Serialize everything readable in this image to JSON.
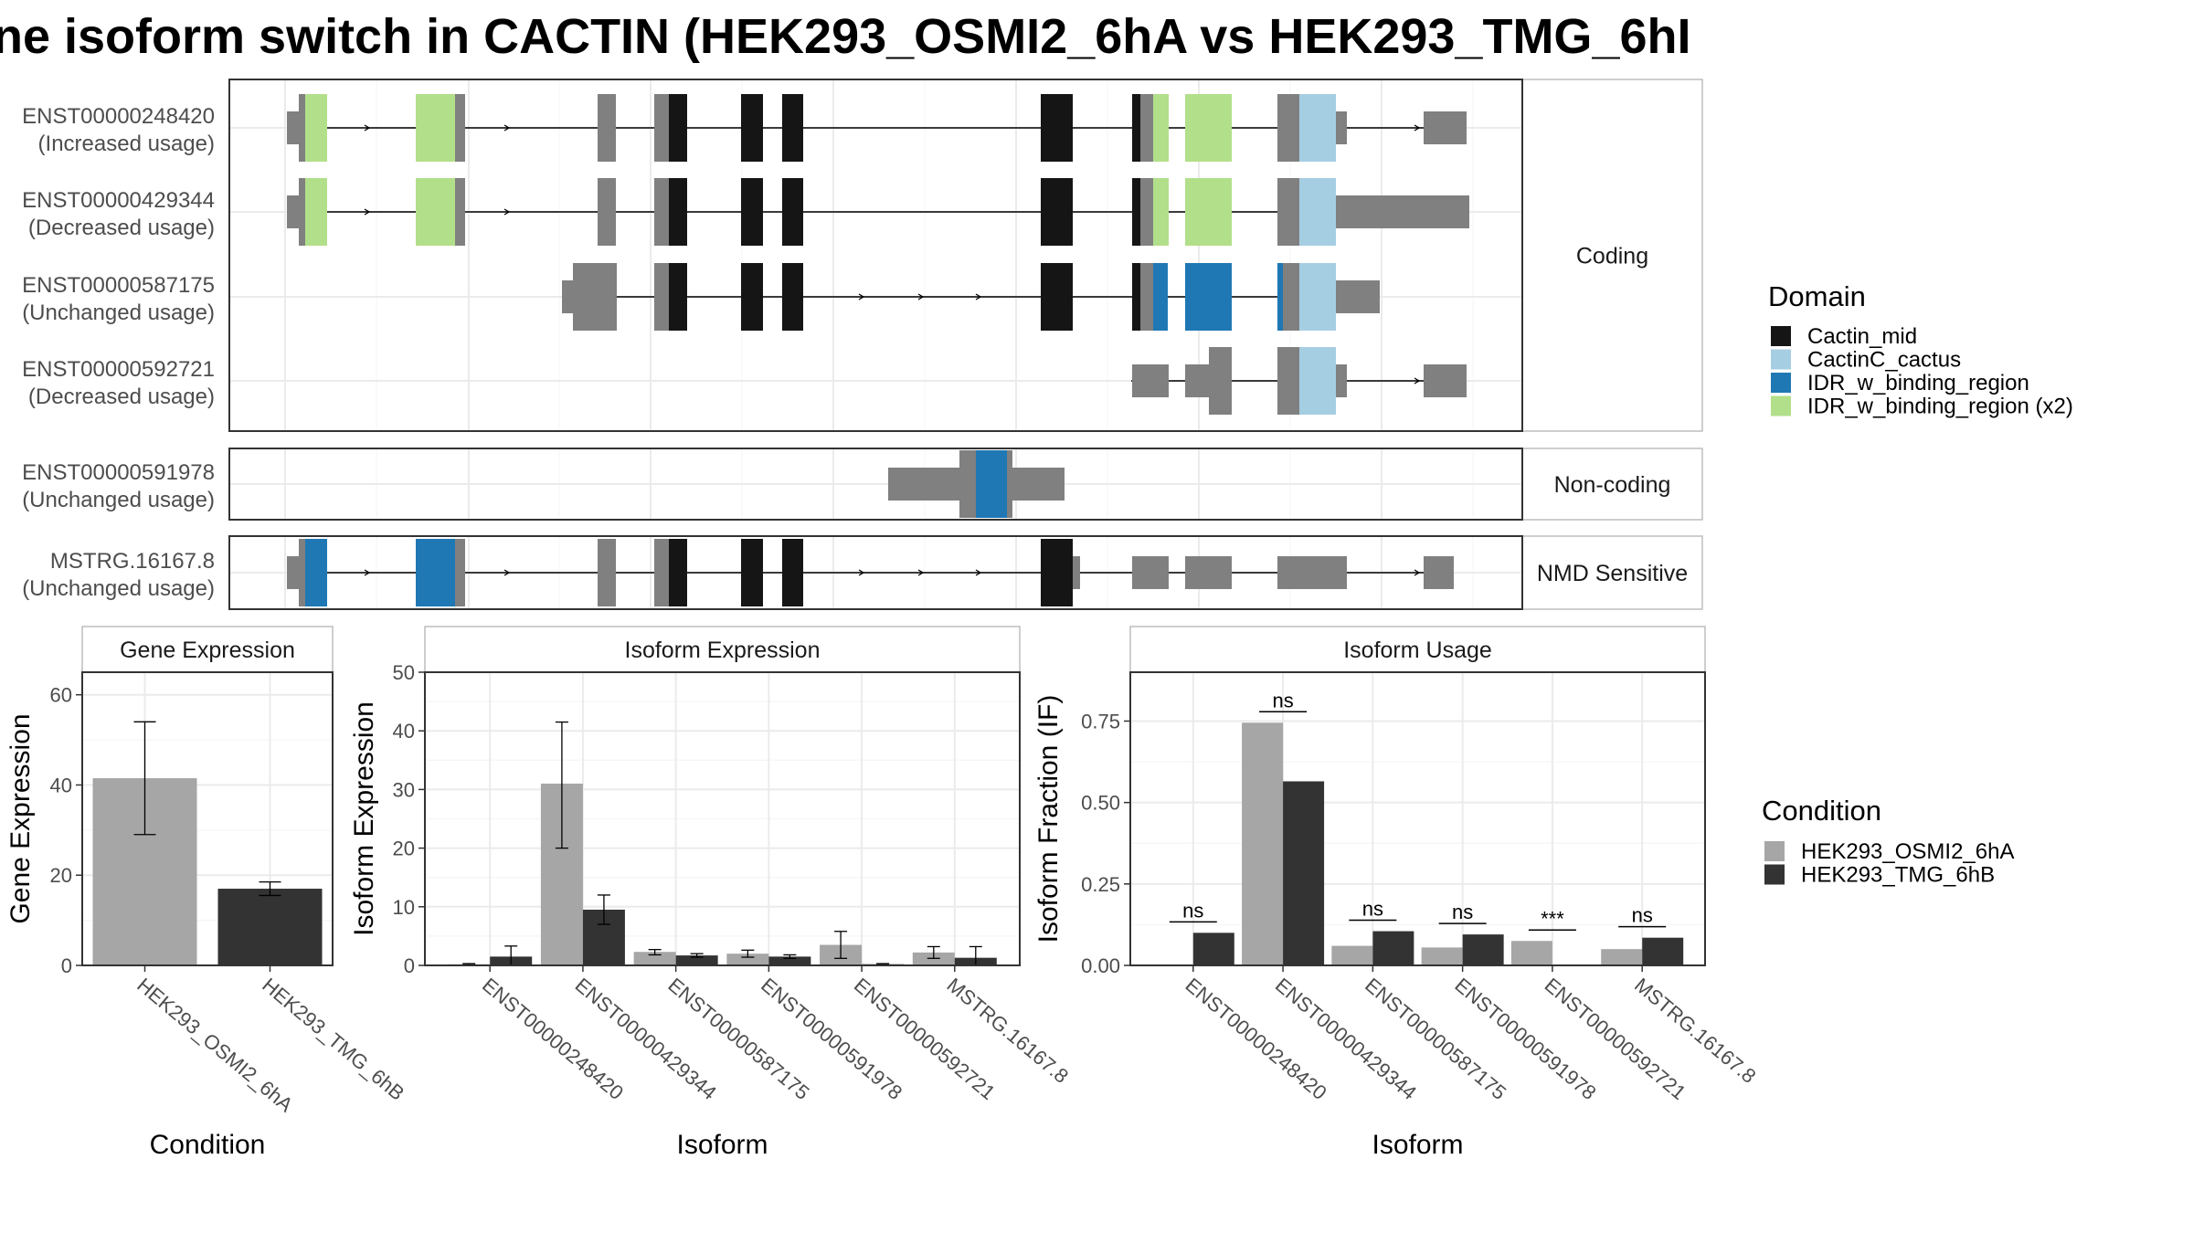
{
  "title": "ne isoform switch in CACTIN (HEK293_OSMI2_6hA vs HEK293_TMG_6hI",
  "colors": {
    "Cactin_mid": "#151515",
    "CactinC_cactus": "#a6cee3",
    "IDR_w_binding_region": "#1f78b4",
    "IDR_w_binding_region (x2)": "#b2df8a",
    "non_domain": "#808080",
    "HEK293_OSMI2_6hA": "#a6a6a6",
    "HEK293_TMG_6hB": "#333333"
  },
  "isoform_panel": {
    "facets": [
      "Coding",
      "Non-coding",
      "NMD Sensitive"
    ],
    "isoforms": [
      {
        "id": "ENST00000248420",
        "usage": "(Increased usage)",
        "facet": "Coding"
      },
      {
        "id": "ENST00000429344",
        "usage": "(Decreased usage)",
        "facet": "Coding"
      },
      {
        "id": "ENST00000587175",
        "usage": "(Unchanged usage)",
        "facet": "Coding"
      },
      {
        "id": "ENST00000592721",
        "usage": "(Decreased usage)",
        "facet": "Coding"
      },
      {
        "id": "ENST00000591978",
        "usage": "(Unchanged usage)",
        "facet": "Non-coding"
      },
      {
        "id": "MSTRG.16167.8",
        "usage": "(Unchanged usage)",
        "facet": "NMD Sensitive"
      }
    ]
  },
  "domain_legend": {
    "title": "Domain",
    "items": [
      "Cactin_mid",
      "CactinC_cactus",
      "IDR_w_binding_region",
      "IDR_w_binding_region (x2)"
    ]
  },
  "condition_legend": {
    "title": "Condition",
    "items": [
      "HEK293_OSMI2_6hA",
      "HEK293_TMG_6hB"
    ]
  },
  "chart_data": [
    {
      "type": "bar",
      "title": "Gene Expression",
      "xlabel": "Condition",
      "ylabel": "Gene Expression",
      "categories": [
        "HEK293_OSMI2_6hA",
        "HEK293_TMG_6hB"
      ],
      "values": [
        41.5,
        17
      ],
      "error": [
        [
          29,
          54
        ],
        [
          15.5,
          18.5
        ]
      ],
      "yticks": [
        0,
        20,
        40,
        60
      ],
      "ylim": [
        0,
        65
      ]
    },
    {
      "type": "bar",
      "title": "Isoform Expression",
      "xlabel": "Isoform",
      "ylabel": "Isoform Expression",
      "categories": [
        "ENST00000248420",
        "ENST00000429344",
        "ENST00000587175",
        "ENST00000591978",
        "ENST00000592721",
        "MSTRG.16167.8"
      ],
      "series": [
        {
          "name": "HEK293_OSMI2_6hA",
          "values": [
            0.2,
            31,
            2.3,
            2,
            3.5,
            2.2
          ],
          "error": [
            [
              0.1,
              0.3
            ],
            [
              20,
              41.5
            ],
            [
              1.8,
              2.7
            ],
            [
              1.4,
              2.6
            ],
            [
              1.2,
              5.8
            ],
            [
              1.2,
              3.2
            ]
          ]
        },
        {
          "name": "HEK293_TMG_6hB",
          "values": [
            1.5,
            9.5,
            1.7,
            1.5,
            0.2,
            1.3
          ],
          "error": [
            [
              0,
              3.3
            ],
            [
              7,
              12
            ],
            [
              1.4,
              2
            ],
            [
              1.2,
              1.8
            ],
            [
              0.1,
              0.3
            ],
            [
              0,
              3.2
            ]
          ]
        }
      ],
      "yticks": [
        0,
        10,
        20,
        30,
        40,
        50
      ],
      "ylim": [
        0,
        50
      ]
    },
    {
      "type": "bar",
      "title": "Isoform Usage",
      "xlabel": "Isoform",
      "ylabel": "Isoform Fraction (IF)",
      "categories": [
        "ENST00000248420",
        "ENST00000429344",
        "ENST00000587175",
        "ENST00000591978",
        "ENST00000592721",
        "MSTRG.16167.8"
      ],
      "series": [
        {
          "name": "HEK293_OSMI2_6hA",
          "values": [
            0,
            0.745,
            0.06,
            0.055,
            0.075,
            0.05
          ]
        },
        {
          "name": "HEK293_TMG_6hB",
          "values": [
            0.1,
            0.565,
            0.105,
            0.095,
            0,
            0.085
          ]
        }
      ],
      "significance": [
        "ns",
        "ns",
        "ns",
        "ns",
        "***",
        "ns"
      ],
      "yticks": [
        "0.00",
        "0.25",
        "0.50",
        "0.75"
      ],
      "ytick_values": [
        0,
        0.25,
        0.5,
        0.75
      ],
      "ylim": [
        0,
        0.9
      ]
    }
  ]
}
